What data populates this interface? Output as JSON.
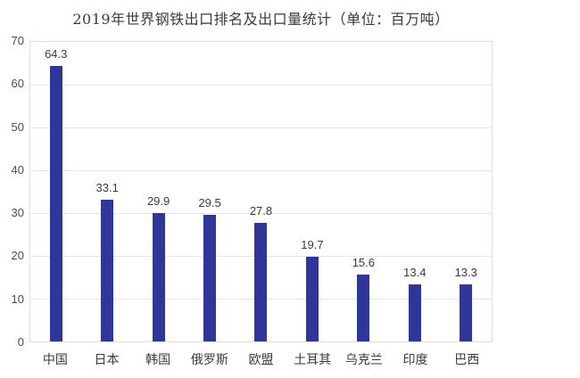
{
  "title": "2019年世界钢铁出口排名及出口量统计（单位：百万吨）",
  "colors": {
    "bar": "#2f3699",
    "grid": "#e4e7e7",
    "plot_border": "#d9e0e0",
    "title_text": "#3a3a3a",
    "tick_text": "#4c4c4c",
    "value_label_text": "#3b3b3b",
    "background": "#ffffff"
  },
  "chart_data": {
    "type": "bar",
    "title": "2019年世界钢铁出口排名及出口量统计（单位：百万吨）",
    "categories": [
      "中国",
      "日本",
      "韩国",
      "俄罗斯",
      "欧盟",
      "土耳其",
      "乌克兰",
      "印度",
      "巴西"
    ],
    "values": [
      64.3,
      33.1,
      29.9,
      29.5,
      27.8,
      19.7,
      15.6,
      13.4,
      13.3
    ],
    "value_labels": [
      "64.3",
      "33.1",
      "29.9",
      "29.5",
      "27.8",
      "19.7",
      "15.6",
      "13.4",
      "13.3"
    ],
    "xlabel": "",
    "ylabel": "",
    "ylim": [
      0,
      70
    ],
    "yticks": [
      0,
      10,
      20,
      30,
      40,
      50,
      60,
      70
    ],
    "grid": true,
    "legend": "none",
    "unit_note": "单位：百万吨"
  }
}
